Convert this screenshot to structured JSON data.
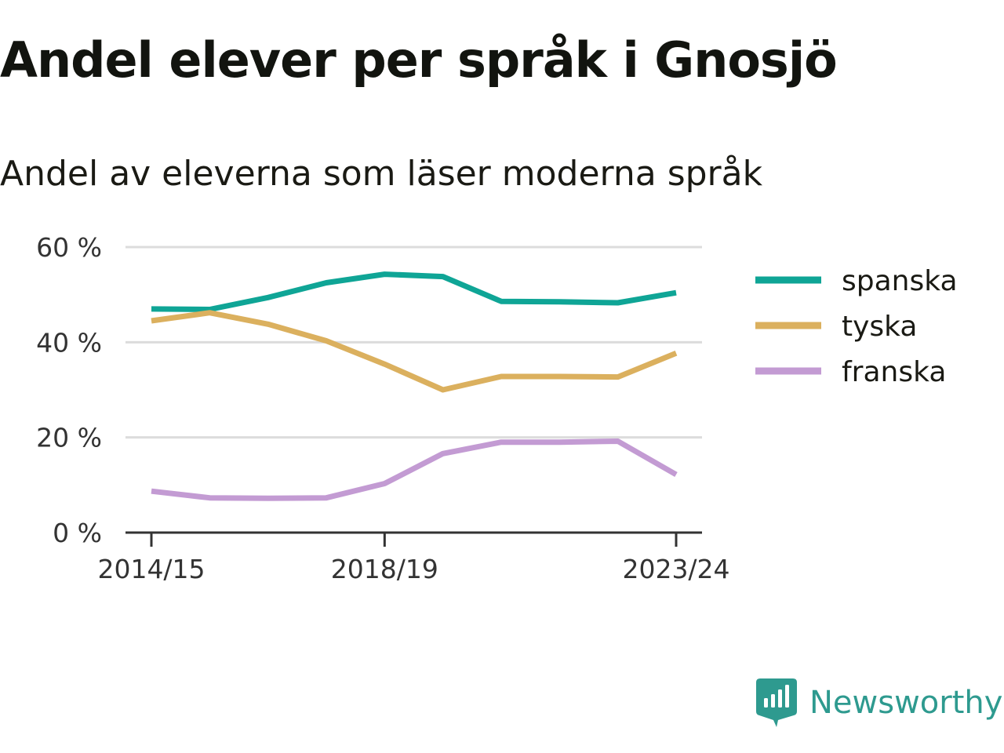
{
  "chart_data": {
    "type": "line",
    "title": "Andel elever per språk i Gnosjö",
    "subtitle": "Andel av eleverna som läser moderna språk",
    "x": [
      "2014/15",
      "2015/16",
      "2016/17",
      "2017/18",
      "2018/19",
      "2019/20",
      "2020/21",
      "2021/22",
      "2022/23",
      "2023/24"
    ],
    "x_tick_labels": [
      "2014/15",
      "2018/19",
      "2023/24"
    ],
    "y_ticks": [
      0,
      20,
      40,
      60
    ],
    "y_tick_labels": [
      "0 %",
      "20 %",
      "40 %",
      "60 %"
    ],
    "ylim": [
      0,
      60
    ],
    "grid": true,
    "legend_position": "right",
    "series": [
      {
        "name": "spanska",
        "color": "#0fa596",
        "values": [
          47.0,
          46.9,
          49.4,
          52.5,
          54.3,
          53.8,
          48.6,
          48.5,
          48.3,
          50.4
        ]
      },
      {
        "name": "tyska",
        "color": "#dbb05e",
        "values": [
          44.5,
          46.2,
          43.8,
          40.3,
          35.4,
          30.0,
          32.8,
          32.8,
          32.7,
          37.7
        ]
      },
      {
        "name": "franska",
        "color": "#c39bd3",
        "values": [
          8.7,
          7.3,
          7.2,
          7.3,
          10.3,
          16.6,
          19.0,
          19.0,
          19.2,
          12.2
        ]
      }
    ]
  },
  "brand": {
    "name": "Newsworthy",
    "color": "#2e9a8f",
    "icon": "newsworthy-logo-icon"
  }
}
